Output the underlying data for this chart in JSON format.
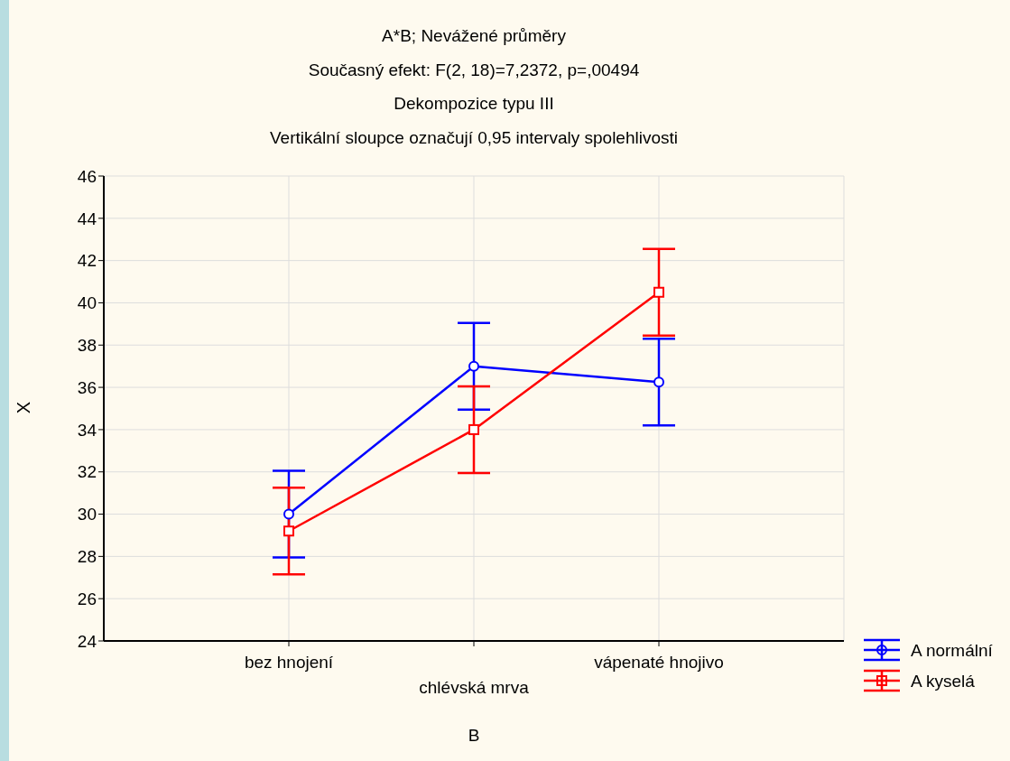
{
  "chart_data": {
    "type": "line",
    "title": "A*B; Nevážené průměry",
    "subtitle": "Současný efekt: F(2, 18)=7,2372, p=,00494",
    "annotations": [
      "Dekompozice typu III",
      "Vertikální sloupce označují 0,95 intervaly spolehlivosti"
    ],
    "xlabel": "B",
    "ylabel": "X",
    "categories": [
      "bez hnojení",
      "chlévská mrva",
      "vápenaté hnojivo"
    ],
    "series": [
      {
        "name": "A normální",
        "color": "#0000ff",
        "marker": "circle",
        "values": [
          30.0,
          37.0,
          36.25
        ],
        "errors": [
          2.05,
          2.05,
          2.05
        ]
      },
      {
        "name": "A kyselá",
        "color": "#ff0000",
        "marker": "square",
        "values": [
          29.2,
          34.0,
          40.5
        ],
        "errors": [
          2.05,
          2.05,
          2.05
        ]
      }
    ],
    "ylim": [
      24,
      46
    ],
    "yticks": [
      24,
      26,
      28,
      30,
      32,
      34,
      36,
      38,
      40,
      42,
      44,
      46
    ],
    "grid": true,
    "legend": "bottom right"
  }
}
